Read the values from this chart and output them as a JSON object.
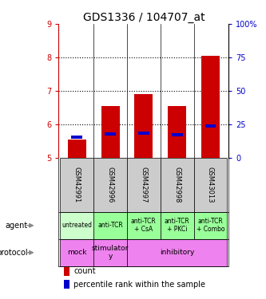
{
  "title": "GDS1336 / 104707_at",
  "samples": [
    "GSM42991",
    "GSM42996",
    "GSM42997",
    "GSM42998",
    "GSM43013"
  ],
  "bar_bottoms": [
    5.0,
    5.0,
    5.0,
    5.0,
    5.0
  ],
  "bar_tops": [
    5.55,
    6.55,
    6.9,
    6.55,
    8.05
  ],
  "percentile_y": [
    5.62,
    5.72,
    5.73,
    5.68,
    5.95
  ],
  "ylim_left": [
    5,
    9
  ],
  "ylim_right": [
    0,
    100
  ],
  "yticks_left": [
    5,
    6,
    7,
    8,
    9
  ],
  "yticks_right": [
    0,
    25,
    50,
    75,
    100
  ],
  "ytick_labels_right": [
    "0",
    "25",
    "50",
    "75",
    "100%"
  ],
  "bar_color": "#cc0000",
  "pct_color": "#0000cc",
  "agent_labels": [
    "untreated",
    "anti-TCR",
    "anti-TCR\n+ CsA",
    "anti-TCR\n+ PKCi",
    "anti-TCR\n+ Combo"
  ],
  "agent_colors": [
    "#ccffcc",
    "#99ff99",
    "#99ff99",
    "#99ff99",
    "#99ff99"
  ],
  "sample_bg_color": "#cccccc",
  "legend_count_color": "#cc0000",
  "legend_pct_color": "#0000cc",
  "title_fontsize": 10,
  "tick_fontsize": 7,
  "label_fontsize": 7
}
